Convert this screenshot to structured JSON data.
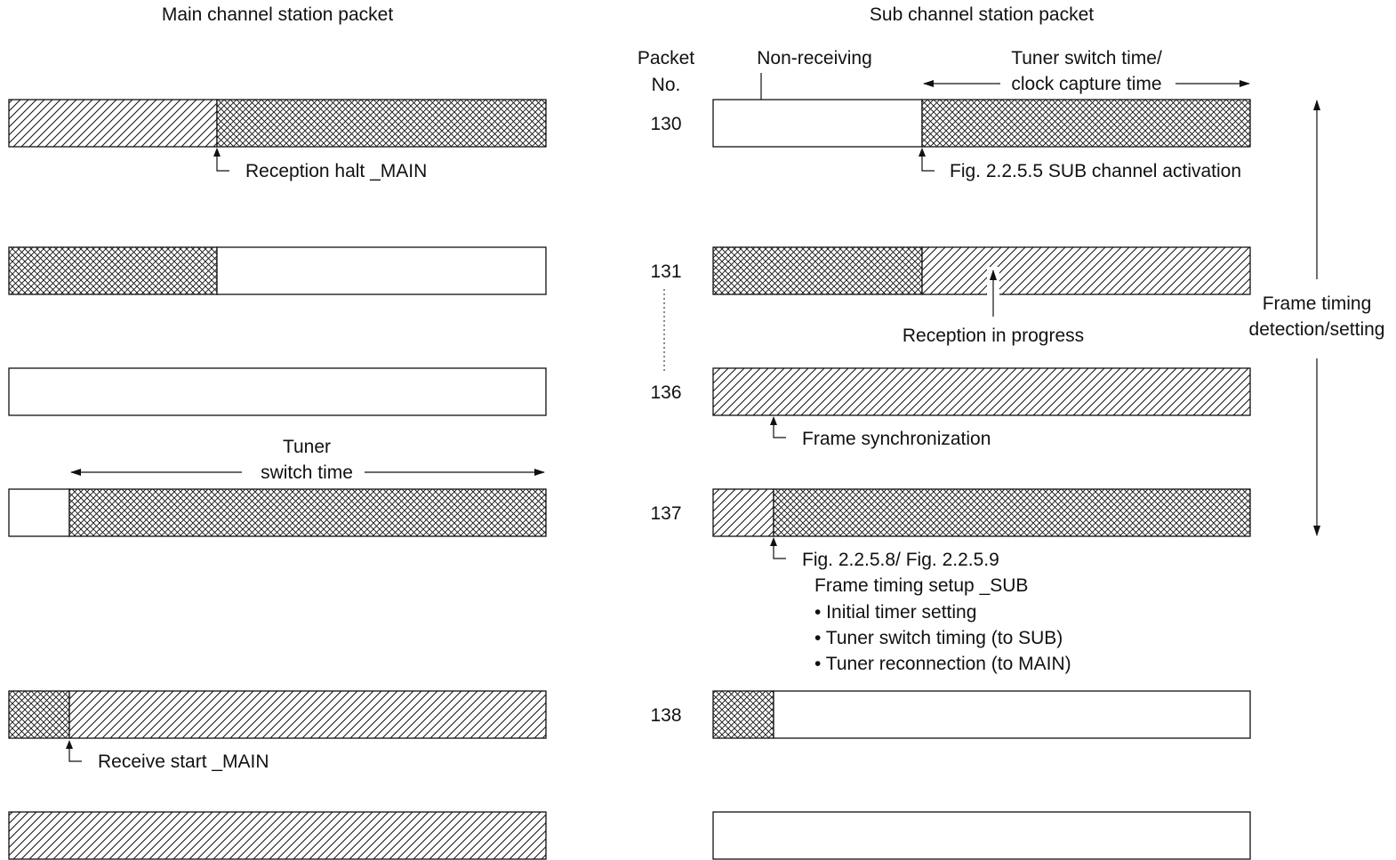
{
  "titles": {
    "main": "Main channel station packet",
    "sub": "Sub channel station packet"
  },
  "headers": {
    "packet_no_line1": "Packet",
    "packet_no_line2": "No.",
    "non_receiving": "Non-receiving",
    "tuner_clock_line1": "Tuner switch time/",
    "tuner_clock_line2": "clock capture time"
  },
  "packet_numbers": [
    "130",
    "131",
    "136",
    "137",
    "138"
  ],
  "main_labels": {
    "reception_halt": "Reception halt _MAIN",
    "tuner_line1": "Tuner",
    "tuner_line2": "switch time",
    "receive_start": "Receive start _MAIN"
  },
  "sub_labels": {
    "sub_activation": "Fig. 2.2.5.5 SUB channel activation",
    "reception_in_progress": "Reception in progress",
    "frame_sync": "Frame synchronization",
    "frame_timing_figs": "Fig. 2.2.5.8/ Fig. 2.2.5.9",
    "frame_timing_setup": "Frame timing setup _SUB",
    "bullet_initial": "• Initial timer setting",
    "bullet_switch": "• Tuner switch timing (to SUB)",
    "bullet_reconnect": "• Tuner reconnection (to MAIN)"
  },
  "side_label": {
    "line1": "Frame timing",
    "line2": "detection/setting"
  },
  "legend_patterns": {
    "receiving": "diagonal hatch",
    "switching": "cross hatch",
    "idle": "blank"
  }
}
